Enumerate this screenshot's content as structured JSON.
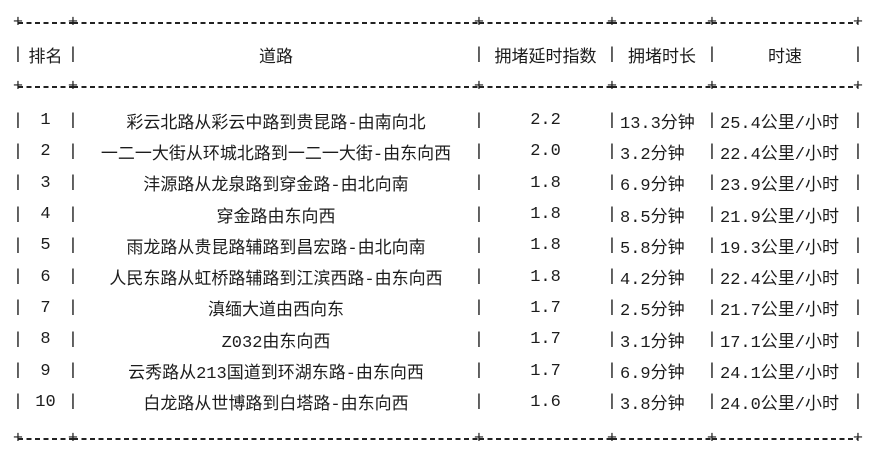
{
  "table": {
    "headers": {
      "rank": "排名",
      "road": "道路",
      "index": "拥堵延时指数",
      "duration": "拥堵时长",
      "speed": "时速"
    },
    "glyphs": {
      "plus": "+",
      "dash": "-",
      "bar": "|"
    },
    "rows": [
      {
        "rank": "1",
        "road": "彩云北路从彩云中路到贵昆路-由南向北",
        "index": "2.2",
        "duration": "13.3分钟",
        "speed": "25.4公里/小时"
      },
      {
        "rank": "2",
        "road": "一二一大街从环城北路到一二一大街-由东向西",
        "index": "2.0",
        "duration": "3.2分钟",
        "speed": "22.4公里/小时"
      },
      {
        "rank": "3",
        "road": "沣源路从龙泉路到穿金路-由北向南",
        "index": "1.8",
        "duration": "6.9分钟",
        "speed": "23.9公里/小时"
      },
      {
        "rank": "4",
        "road": "穿金路由东向西",
        "index": "1.8",
        "duration": "8.5分钟",
        "speed": "21.9公里/小时"
      },
      {
        "rank": "5",
        "road": "雨龙路从贵昆路辅路到昌宏路-由北向南",
        "index": "1.8",
        "duration": "5.8分钟",
        "speed": "19.3公里/小时"
      },
      {
        "rank": "6",
        "road": "人民东路从虹桥路辅路到江滨西路-由东向西",
        "index": "1.8",
        "duration": "4.2分钟",
        "speed": "22.4公里/小时"
      },
      {
        "rank": "7",
        "road": "滇缅大道由西向东",
        "index": "1.7",
        "duration": "2.5分钟",
        "speed": "21.7公里/小时"
      },
      {
        "rank": "8",
        "road": "Z032由东向西",
        "index": "1.7",
        "duration": "3.1分钟",
        "speed": "17.1公里/小时"
      },
      {
        "rank": "9",
        "road": "云秀路从213国道到环湖东路-由东向西",
        "index": "1.7",
        "duration": "6.9分钟",
        "speed": "24.1公里/小时"
      },
      {
        "rank": "10",
        "road": "白龙路从世博路到白塔路-由东向西",
        "index": "1.6",
        "duration": "3.8分钟",
        "speed": "24.0公里/小时"
      }
    ]
  }
}
